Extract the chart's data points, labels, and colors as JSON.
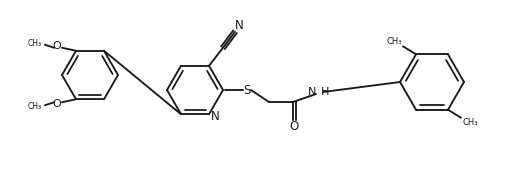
{
  "background_color": "#ffffff",
  "line_color": "#1a1a1a",
  "line_width": 1.35,
  "font_size": 8.0,
  "figsize": [
    5.26,
    1.78
  ],
  "dpi": 100,
  "xlim": [
    0,
    526
  ],
  "ylim": [
    0,
    178
  ]
}
